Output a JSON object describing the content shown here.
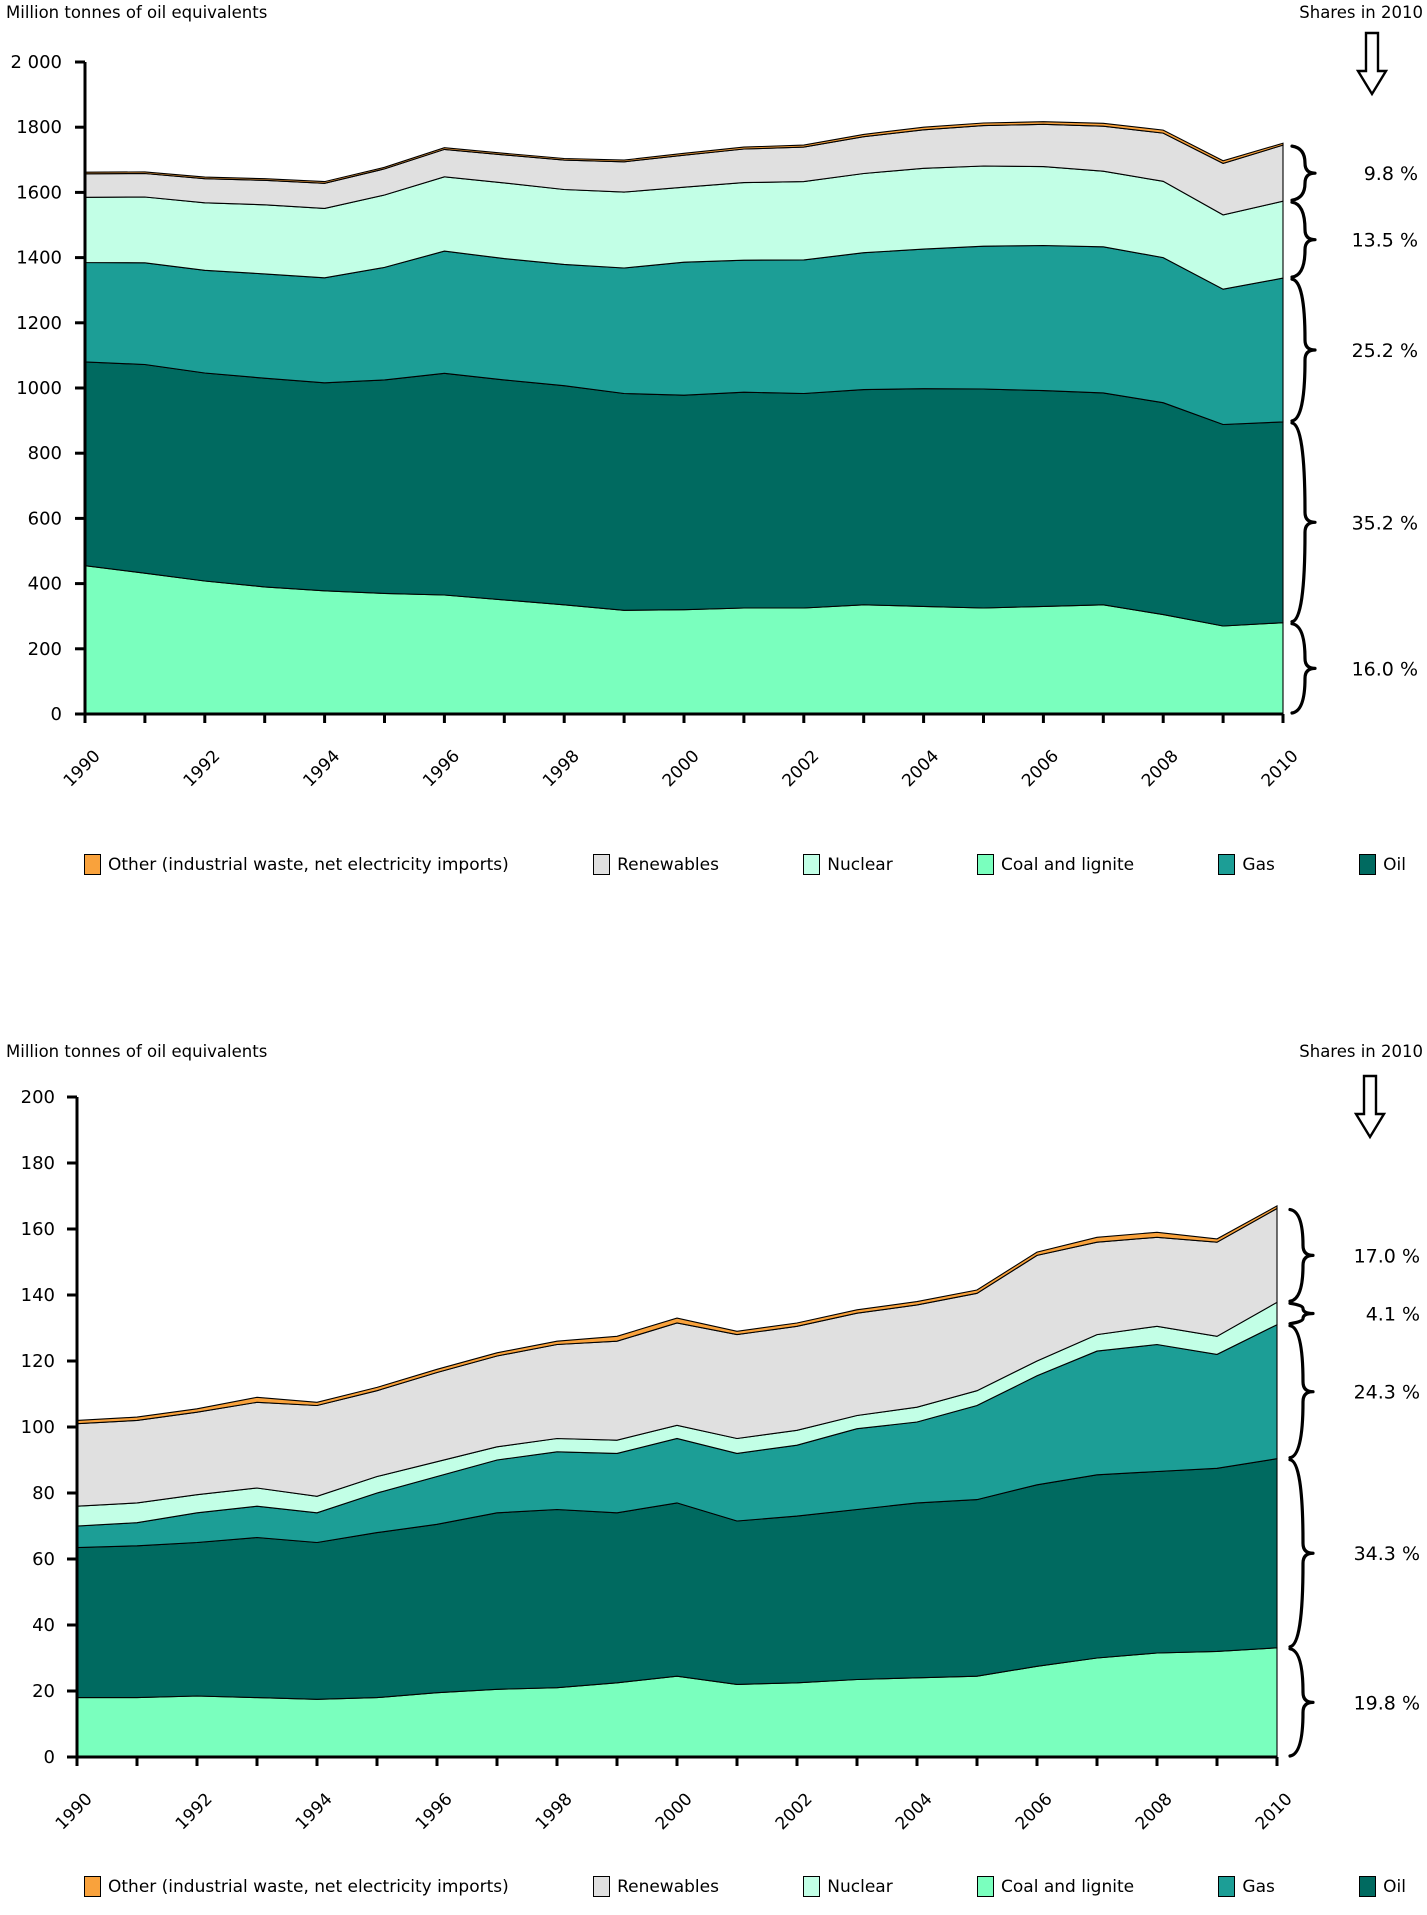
{
  "legend": {
    "items": [
      "Other (industrial waste, net electricity imports)",
      "Renewables",
      "Nuclear",
      "Coal and lignite",
      "Gas",
      "Oil"
    ]
  },
  "chart_data": [
    {
      "type": "area",
      "stacked": true,
      "title": "Million tonnes of oil equivalents",
      "annotation": "Shares in 2010",
      "x": [
        1990,
        1991,
        1992,
        1993,
        1994,
        1995,
        1996,
        1997,
        1998,
        1999,
        2000,
        2001,
        2002,
        2003,
        2004,
        2005,
        2006,
        2007,
        2008,
        2009,
        2010
      ],
      "x_label_every": 2,
      "ylim": [
        0,
        2000
      ],
      "y_tick_step": 200,
      "y_tick_labels": [
        "2 000",
        "1800",
        "1600",
        "1400",
        "1200",
        "1000",
        "800",
        "600",
        "400",
        "200",
        "0"
      ],
      "grid": false,
      "legend_position": "bottom",
      "series": [
        {
          "name": "Coal and lignite",
          "color": "#7AFFBE",
          "share_2010": "16.0 %",
          "values": [
            455,
            432,
            408,
            390,
            378,
            370,
            365,
            350,
            335,
            318,
            320,
            325,
            325,
            335,
            330,
            325,
            330,
            335,
            305,
            270,
            280
          ]
        },
        {
          "name": "Oil",
          "color": "#006A60",
          "share_2010": "35.2 %",
          "values": [
            625,
            640,
            638,
            640,
            638,
            655,
            680,
            675,
            672,
            665,
            658,
            662,
            658,
            660,
            668,
            672,
            662,
            650,
            650,
            618,
            616
          ]
        },
        {
          "name": "Gas",
          "color": "#1C9E96",
          "share_2010": "25.2 %",
          "values": [
            305,
            312,
            315,
            320,
            322,
            345,
            375,
            372,
            372,
            385,
            408,
            405,
            410,
            420,
            428,
            438,
            445,
            448,
            445,
            415,
            441
          ]
        },
        {
          "name": "Nuclear",
          "color": "#C2FFE6",
          "share_2010": "13.5 %",
          "values": [
            200,
            202,
            207,
            212,
            213,
            222,
            228,
            232,
            230,
            233,
            230,
            238,
            240,
            243,
            248,
            246,
            242,
            232,
            234,
            228,
            236
          ]
        },
        {
          "name": "Renewables",
          "color": "#E0E0E0",
          "share_2010": "9.8 %",
          "values": [
            72,
            72,
            74,
            75,
            77,
            80,
            84,
            86,
            90,
            93,
            98,
            103,
            106,
            113,
            118,
            124,
            130,
            138,
            148,
            158,
            172
          ]
        },
        {
          "name": "Other (industrial waste, net electricity imports)",
          "color": "#F9A23C",
          "share_2010": null,
          "values": [
            5,
            5,
            5,
            5,
            5,
            5,
            5,
            5,
            5,
            5,
            6,
            6,
            6,
            7,
            8,
            8,
            8,
            9,
            9,
            8,
            6
          ]
        }
      ]
    },
    {
      "type": "area",
      "stacked": true,
      "title": "Million tonnes of oil equivalents",
      "annotation": "Shares in 2010",
      "x": [
        1990,
        1991,
        1992,
        1993,
        1994,
        1995,
        1996,
        1997,
        1998,
        1999,
        2000,
        2001,
        2002,
        2003,
        2004,
        2005,
        2006,
        2007,
        2008,
        2009,
        2010
      ],
      "x_label_every": 2,
      "ylim": [
        0,
        200
      ],
      "y_tick_step": 20,
      "y_tick_labels": [
        "200",
        "180",
        "160",
        "140",
        "120",
        "100",
        "80",
        "60",
        "40",
        "20",
        "0"
      ],
      "grid": false,
      "legend_position": "bottom",
      "series": [
        {
          "name": "Coal and lignite",
          "color": "#7AFFBE",
          "share_2010": "19.8 %",
          "values": [
            18,
            18,
            18.5,
            18,
            17.5,
            18,
            19.5,
            20.5,
            21,
            22.5,
            24.5,
            22,
            22.5,
            23.5,
            24,
            24.5,
            27.5,
            30,
            31.5,
            32,
            33.1
          ]
        },
        {
          "name": "Oil",
          "color": "#006A60",
          "share_2010": "34.3 %",
          "values": [
            45.5,
            46,
            46.5,
            48.5,
            47.5,
            50,
            51,
            53.5,
            54,
            51.5,
            52.5,
            49.5,
            50.5,
            51.5,
            53,
            53.5,
            55,
            55.5,
            55,
            55.5,
            57.3
          ]
        },
        {
          "name": "Gas",
          "color": "#1C9E96",
          "share_2010": "24.3 %",
          "values": [
            6.5,
            7,
            9,
            9.5,
            9,
            12,
            14.5,
            16,
            17.5,
            18,
            19.5,
            20.5,
            21.5,
            24.5,
            24.5,
            28.5,
            33,
            37.5,
            38.5,
            34.5,
            40.6
          ]
        },
        {
          "name": "Nuclear",
          "color": "#C2FFE6",
          "share_2010": "4.1 %",
          "values": [
            6,
            6,
            5.5,
            5.5,
            5,
            5,
            4.5,
            4,
            4,
            4,
            4,
            4.5,
            4.5,
            4,
            4.5,
            4.5,
            4.5,
            5,
            5.5,
            5.5,
            6.8
          ]
        },
        {
          "name": "Renewables",
          "color": "#E0E0E0",
          "share_2010": "17.0 %",
          "values": [
            25,
            25,
            25,
            26,
            27.5,
            26,
            27,
            27.5,
            28.5,
            30,
            31,
            31.5,
            31.5,
            31,
            31,
            29.5,
            32,
            28,
            27,
            28.5,
            28.4
          ]
        },
        {
          "name": "Other (industrial waste, net electricity imports)",
          "color": "#F9A23C",
          "share_2010": null,
          "values": [
            1,
            1,
            1,
            1.5,
            1,
            1,
            1,
            1,
            1,
            1.5,
            1.5,
            1,
            1,
            1,
            1,
            1,
            1,
            1.5,
            1.5,
            1,
            0.8
          ]
        }
      ]
    }
  ]
}
